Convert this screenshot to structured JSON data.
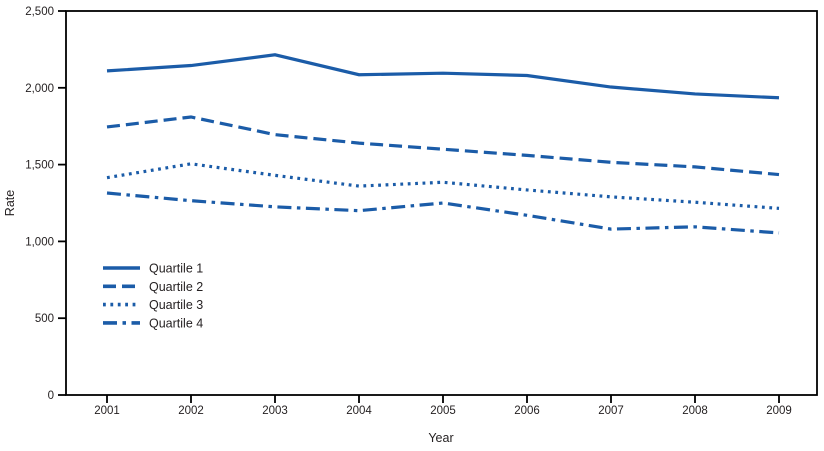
{
  "colors": {
    "line_blue": "#1b5ca8",
    "text": "#231f20",
    "axis": "#000000",
    "background": "#ffffff"
  },
  "chart_data": {
    "type": "line",
    "title": "",
    "xlabel": "Year",
    "ylabel": "Rate",
    "categories": [
      "2001",
      "2002",
      "2003",
      "2004",
      "2005",
      "2006",
      "2007",
      "2008",
      "2009"
    ],
    "ylim": [
      0,
      2500
    ],
    "grid": false,
    "legend_position": "inside-left-middle",
    "y_ticks": [
      {
        "value": 0,
        "label": "0"
      },
      {
        "value": 500,
        "label": "500"
      },
      {
        "value": 1000,
        "label": "1,000"
      },
      {
        "value": 1500,
        "label": "1,500"
      },
      {
        "value": 2000,
        "label": "2,000"
      },
      {
        "value": 2500,
        "label": "2,500"
      }
    ],
    "series": [
      {
        "name": "Quartile 1",
        "style": "solid",
        "values": [
          2110,
          2145,
          2215,
          2085,
          2095,
          2080,
          2005,
          1960,
          1935
        ]
      },
      {
        "name": "Quartile 2",
        "style": "dashed",
        "values": [
          1745,
          1810,
          1695,
          1640,
          1600,
          1560,
          1515,
          1485,
          1435
        ]
      },
      {
        "name": "Quartile 3",
        "style": "dotted",
        "values": [
          1415,
          1505,
          1430,
          1360,
          1385,
          1335,
          1290,
          1255,
          1215
        ]
      },
      {
        "name": "Quartile 4",
        "style": "dashdot",
        "values": [
          1315,
          1265,
          1225,
          1200,
          1250,
          1170,
          1080,
          1095,
          1055
        ]
      }
    ]
  }
}
